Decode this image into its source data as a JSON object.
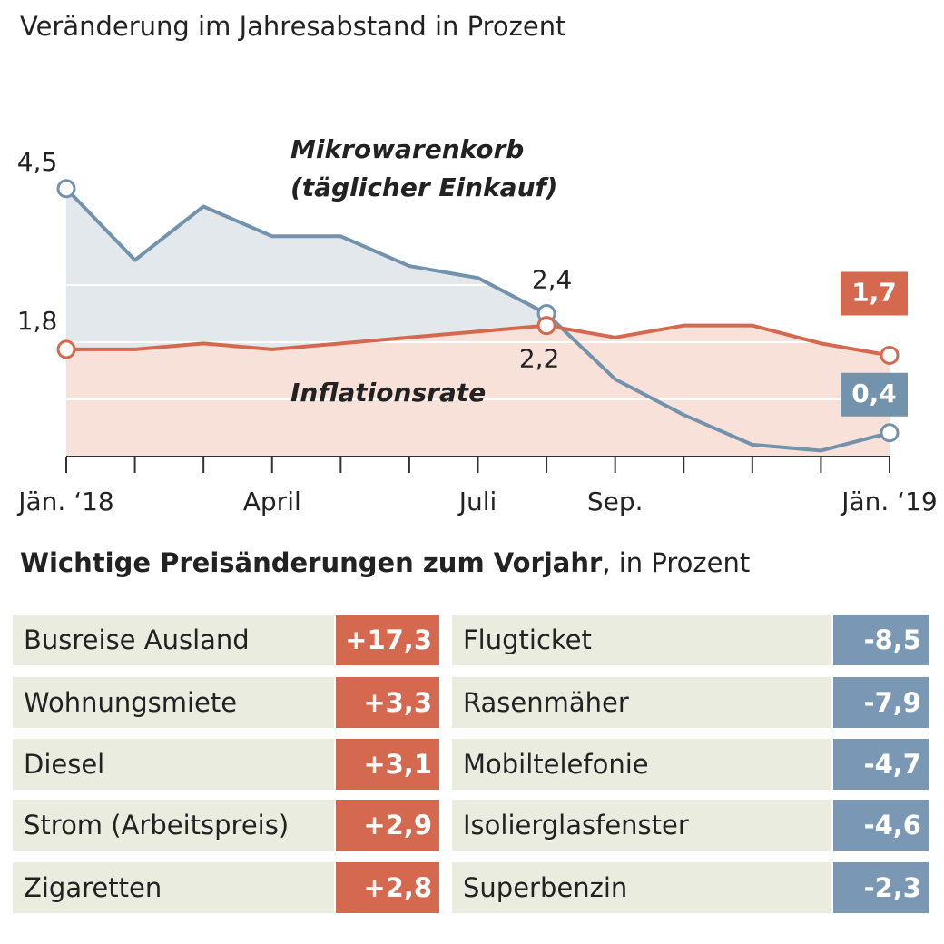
{
  "chart_data": {
    "type": "line",
    "subtitle": "Veränderung im Jahresabstand in Prozent",
    "categories": [
      "Jän. ‘18",
      null,
      null,
      "April",
      null,
      null,
      "Juli",
      null,
      "Sep.",
      null,
      null,
      null,
      "Jän. ‘19"
    ],
    "ylim": [
      0,
      5
    ],
    "series": [
      {
        "name": "Mikrowarenkorb (täglicher Einkauf)",
        "color": "#7393ad",
        "fill": "#e3e8ed",
        "values": [
          4.5,
          3.3,
          4.2,
          3.7,
          3.7,
          3.2,
          3.0,
          2.4,
          1.3,
          0.7,
          0.2,
          0.1,
          0.4
        ],
        "value_labels": [
          "4,5",
          null,
          null,
          null,
          null,
          null,
          null,
          "2,4",
          null,
          null,
          null,
          null,
          "0,4"
        ]
      },
      {
        "name": "Inflationsrate",
        "color": "#d4694f",
        "fill": "#f8e1d8",
        "values": [
          1.8,
          1.8,
          1.9,
          1.8,
          1.9,
          2.0,
          2.1,
          2.2,
          2.0,
          2.2,
          2.2,
          1.9,
          1.7
        ],
        "value_labels": [
          "1,8",
          null,
          null,
          null,
          null,
          null,
          null,
          "2,2",
          null,
          null,
          null,
          null,
          "1,7"
        ]
      }
    ]
  },
  "table": {
    "title_bold": "Wichtige Preisänderungen zum Vorjahr",
    "title_rest": ", in Prozent",
    "left": [
      [
        "Busreise Ausland",
        "+17,3"
      ],
      [
        "Wohnungsmiete",
        "+3,3"
      ],
      [
        "Diesel",
        "+3,1"
      ],
      [
        "Strom (Arbeitspreis)",
        "+2,9"
      ],
      [
        "Zigaretten",
        "+2,8"
      ]
    ],
    "right": [
      [
        "Flugticket",
        "-8,5"
      ],
      [
        "Rasenmäher",
        "-7,9"
      ],
      [
        "Mobiltelefonie",
        "-4,7"
      ],
      [
        "Isolierglasfenster",
        "-4,6"
      ],
      [
        "Superbenzin",
        "-2,3"
      ]
    ]
  }
}
